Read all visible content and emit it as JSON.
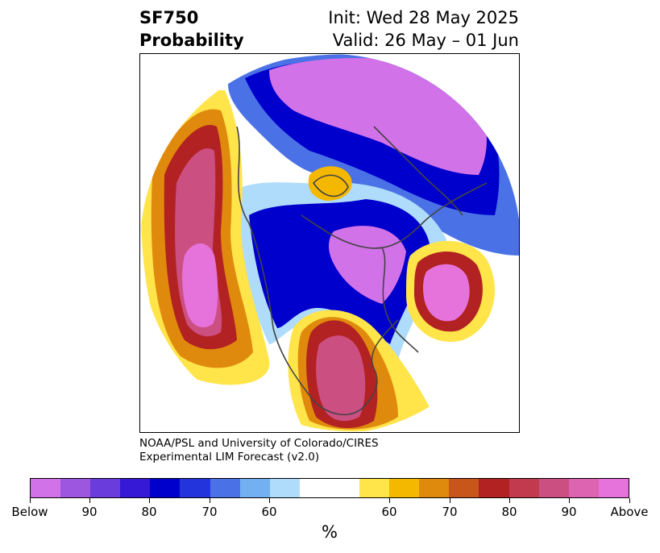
{
  "header": {
    "variable": "SF750",
    "product": "Probability",
    "init": "Init: Wed 28 May 2025",
    "valid": "Valid: 26 May – 01 Jun"
  },
  "credit": {
    "line1": "NOAA/PSL and University of Colorado/CIRES",
    "line2": "Experimental LIM Forecast (v2.0)"
  },
  "colorbar": {
    "colors": [
      "#d272e8",
      "#9c56e0",
      "#6a3cdc",
      "#3519d6",
      "#0000cc",
      "#2334dc",
      "#4a72e6",
      "#73b0f2",
      "#aedcfa",
      "#ffffff",
      "#ffffff",
      "#ffe44a",
      "#f5b800",
      "#e08a0d",
      "#c8551a",
      "#b22222",
      "#c23a4e",
      "#cc4f82",
      "#dc64b0",
      "#e672dc"
    ],
    "tick_labels": [
      "Below",
      "90",
      "80",
      "70",
      "60",
      "60",
      "70",
      "80",
      "90",
      "Above"
    ],
    "unit": "%"
  },
  "map": {
    "palette": {
      "below_max": "#d272e8",
      "below_90": "#9c56e0",
      "below_80": "#3519d6",
      "below_70": "#0000cc",
      "below_60": "#4a72e6",
      "below_50": "#aedcfa",
      "above_50": "#ffe44a",
      "above_60": "#f5b800",
      "above_70": "#e08a0d",
      "above_80": "#b22222",
      "above_90": "#cc4f82",
      "above_max": "#e672dc"
    },
    "coastline_color": "#444444"
  }
}
